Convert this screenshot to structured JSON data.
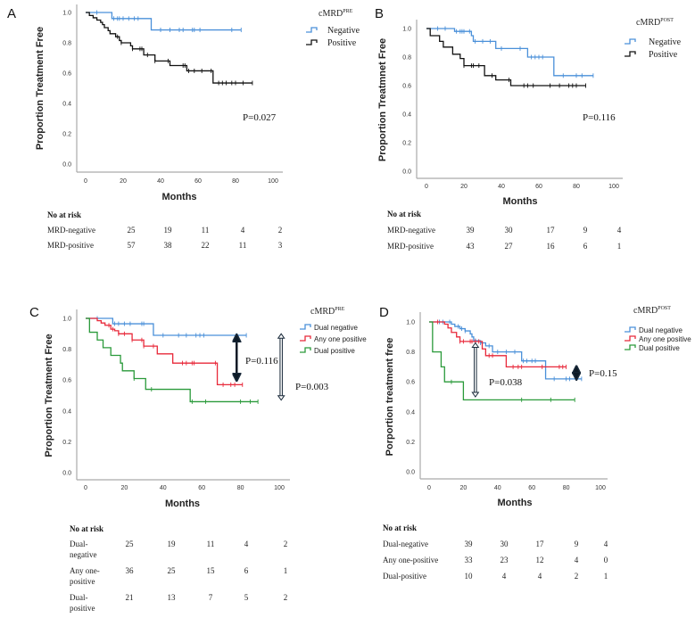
{
  "chart_data": [
    {
      "type": "line",
      "panel": "A",
      "title": "",
      "xlabel": "Months",
      "ylabel": "Proportion Treatment Free",
      "xlim": [
        0,
        100
      ],
      "ylim": [
        0,
        1
      ],
      "xticks": [
        "0",
        "20",
        "40",
        "60",
        "80",
        "100"
      ],
      "yticks": [
        "0.0",
        "0.2",
        "0.4",
        "0.6",
        "0.8",
        "1.0"
      ],
      "legend_title": "cMRD",
      "legend_title_sup": "PRE",
      "legend_style": "serif",
      "pvalues": [
        {
          "text": "P=0.027"
        }
      ],
      "series": [
        {
          "name": "Negative",
          "color": "#4a90d9",
          "steps": [
            [
              0,
              1
            ],
            [
              14,
              0.96
            ],
            [
              35,
              0.885
            ]
          ],
          "end": 83,
          "censors": [
            6,
            15,
            17,
            18,
            20,
            23,
            26,
            28,
            40,
            45,
            50,
            52,
            57,
            58,
            61,
            78,
            83
          ]
        },
        {
          "name": "Positive",
          "color": "#111111",
          "steps": [
            [
              0,
              1
            ],
            [
              2,
              0.98
            ],
            [
              4,
              0.965
            ],
            [
              6,
              0.95
            ],
            [
              8,
              0.935
            ],
            [
              9,
              0.92
            ],
            [
              10,
              0.9
            ],
            [
              12,
              0.88
            ],
            [
              13,
              0.86
            ],
            [
              16,
              0.84
            ],
            [
              18,
              0.815
            ],
            [
              19,
              0.8
            ],
            [
              24,
              0.78
            ],
            [
              25,
              0.76
            ],
            [
              31,
              0.72
            ],
            [
              37,
              0.68
            ],
            [
              45,
              0.65
            ],
            [
              54,
              0.615
            ],
            [
              68,
              0.535
            ]
          ],
          "end": 89,
          "censors": [
            17,
            19,
            25,
            29,
            30,
            33,
            37,
            44,
            52,
            53,
            55,
            58,
            62,
            67,
            71,
            73,
            75,
            78,
            80,
            84,
            89
          ]
        }
      ],
      "risk_table": {
        "header": "No at risk",
        "rows": [
          {
            "label": [
              "MRD-negative"
            ],
            "values": [
              25,
              19,
              11,
              4,
              2
            ]
          },
          {
            "label": [
              "MRD-positive"
            ],
            "values": [
              57,
              38,
              22,
              11,
              3
            ]
          }
        ]
      }
    },
    {
      "type": "line",
      "panel": "B",
      "xlabel": "Months",
      "ylabel": "Proportion Treatmnet Free",
      "xlim": [
        0,
        100
      ],
      "ylim": [
        0,
        1
      ],
      "xticks": [
        "0",
        "20",
        "40",
        "60",
        "80",
        "100"
      ],
      "yticks": [
        "0.0",
        "0.2",
        "0.4",
        "0.6",
        "0.8",
        "1.0"
      ],
      "legend_title": "cMRD",
      "legend_title_sup": "POST",
      "legend_style": "serif",
      "pvalues": [
        {
          "text": "P=0.116"
        }
      ],
      "series": [
        {
          "name": "Negative",
          "color": "#4a90d9",
          "steps": [
            [
              0,
              1
            ],
            [
              15,
              0.98
            ],
            [
              24,
              0.95
            ],
            [
              25,
              0.91
            ],
            [
              37,
              0.86
            ],
            [
              54,
              0.8
            ],
            [
              68,
              0.67
            ]
          ],
          "end": 89,
          "censors": [
            6,
            10,
            16,
            18,
            19,
            20,
            23,
            26,
            30,
            34,
            40,
            50,
            56,
            58,
            60,
            62,
            73,
            80,
            83,
            89
          ]
        },
        {
          "name": "Positive",
          "color": "#111111",
          "steps": [
            [
              0,
              1
            ],
            [
              2,
              0.95
            ],
            [
              7,
              0.91
            ],
            [
              9,
              0.87
            ],
            [
              14,
              0.82
            ],
            [
              18,
              0.79
            ],
            [
              20,
              0.74
            ],
            [
              31,
              0.67
            ],
            [
              37,
              0.64
            ],
            [
              45,
              0.6
            ]
          ],
          "end": 85,
          "censors": [
            20,
            24,
            25,
            28,
            35,
            44,
            52,
            54,
            57,
            66,
            71,
            76,
            78,
            80,
            85
          ]
        }
      ],
      "risk_table": {
        "header": "No at risk",
        "rows": [
          {
            "label": [
              "MRD-negative"
            ],
            "values": [
              39,
              30,
              17,
              9,
              4
            ]
          },
          {
            "label": [
              "MRD-positive"
            ],
            "values": [
              43,
              27,
              16,
              6,
              1
            ]
          }
        ]
      }
    },
    {
      "type": "line",
      "panel": "C",
      "xlabel": "Months",
      "ylabel": "Proportion Treatment Free",
      "xlim": [
        0,
        100
      ],
      "ylim": [
        0,
        1
      ],
      "xticks": [
        "0",
        "20",
        "40",
        "60",
        "80",
        "100"
      ],
      "yticks": [
        "0.0",
        "0.2",
        "0.4",
        "0.6",
        "0.8",
        "1.0"
      ],
      "legend_title": "cMRD",
      "legend_title_sup": "PRE",
      "legend_style": "sans",
      "pvalues": [
        {
          "text": "P=0.116",
          "arrow": {
            "t": 78,
            "from": 0.89,
            "to": 0.6,
            "style": "filled"
          }
        },
        {
          "text": "P=0.003",
          "arrow": {
            "t": 101,
            "from": 0.9,
            "to": 0.47,
            "style": "hollow"
          }
        }
      ],
      "series": [
        {
          "name": "Dual negative",
          "color": "#4a90d9",
          "steps": [
            [
              0,
              1
            ],
            [
              14,
              0.965
            ],
            [
              35,
              0.89
            ]
          ],
          "end": 83,
          "censors": [
            6,
            15,
            17,
            20,
            23,
            29,
            30,
            40,
            48,
            52,
            57,
            59,
            61,
            78,
            83
          ]
        },
        {
          "name": "Any one positive",
          "color": "#e8293a",
          "steps": [
            [
              0,
              1
            ],
            [
              6,
              0.985
            ],
            [
              8,
              0.97
            ],
            [
              10,
              0.955
            ],
            [
              13,
              0.93
            ],
            [
              15,
              0.92
            ],
            [
              17,
              0.9
            ],
            [
              24,
              0.86
            ],
            [
              30,
              0.82
            ],
            [
              37,
              0.77
            ],
            [
              45,
              0.71
            ],
            [
              68,
              0.57
            ]
          ],
          "end": 81,
          "censors": [
            12,
            14,
            17,
            20,
            24,
            29,
            30,
            35,
            50,
            52,
            55,
            56,
            67,
            71,
            75,
            77,
            81
          ]
        },
        {
          "name": "Dual positive",
          "color": "#2a9a3a",
          "steps": [
            [
              0,
              1
            ],
            [
              2,
              0.91
            ],
            [
              6,
              0.86
            ],
            [
              9,
              0.81
            ],
            [
              13,
              0.76
            ],
            [
              18,
              0.71
            ],
            [
              19,
              0.66
            ],
            [
              25,
              0.61
            ],
            [
              31,
              0.54
            ],
            [
              54,
              0.46
            ]
          ],
          "end": 89,
          "censors": [
            25,
            34,
            55,
            62,
            80,
            85,
            89
          ]
        }
      ],
      "risk_table": {
        "header": "No at risk",
        "rows": [
          {
            "label": [
              "Dual-",
              "negative"
            ],
            "values": [
              25,
              19,
              11,
              4,
              2
            ]
          },
          {
            "label": [
              "Any one-",
              "positive"
            ],
            "values": [
              36,
              25,
              15,
              6,
              1
            ]
          },
          {
            "label": [
              "Dual-",
              "positive"
            ],
            "values": [
              21,
              13,
              7,
              5,
              2
            ]
          }
        ]
      }
    },
    {
      "type": "line",
      "panel": "D",
      "xlabel": "Months",
      "ylabel": "Porportion treatment free",
      "xlim": [
        0,
        100
      ],
      "ylim": [
        0,
        1
      ],
      "xticks": [
        "0",
        "20",
        "40",
        "60",
        "80",
        "100"
      ],
      "yticks": [
        "0.0",
        "0.2",
        "0.4",
        "0.6",
        "0.8",
        "1.0"
      ],
      "legend_title": "cMRD",
      "legend_title_sup": "POST",
      "legend_style": "sans",
      "pvalues": [
        {
          "text": "P=0.038",
          "arrow": {
            "t": 27,
            "from": 0.86,
            "to": 0.5,
            "style": "hollow"
          }
        },
        {
          "text": "P=0.15",
          "arrow": {
            "t": 86,
            "from": 0.7,
            "to": 0.62,
            "style": "filled"
          }
        }
      ],
      "series": [
        {
          "name": "Dual negative",
          "color": "#4a90d9",
          "steps": [
            [
              0,
              1
            ],
            [
              13,
              0.985
            ],
            [
              15,
              0.97
            ],
            [
              18,
              0.955
            ],
            [
              21,
              0.94
            ],
            [
              24,
              0.92
            ],
            [
              25,
              0.9
            ],
            [
              26,
              0.875
            ],
            [
              30,
              0.86
            ],
            [
              33,
              0.84
            ],
            [
              37,
              0.8
            ],
            [
              54,
              0.74
            ],
            [
              68,
              0.62
            ]
          ],
          "end": 89,
          "censors": [
            6,
            8,
            12,
            17,
            19,
            21,
            27,
            30,
            35,
            40,
            45,
            50,
            55,
            57,
            60,
            62,
            73,
            80,
            82,
            89
          ]
        },
        {
          "name": "Any one positive",
          "color": "#e8293a",
          "steps": [
            [
              0,
              1
            ],
            [
              9,
              0.985
            ],
            [
              11,
              0.96
            ],
            [
              13,
              0.93
            ],
            [
              16,
              0.9
            ],
            [
              18,
              0.87
            ],
            [
              31,
              0.82
            ],
            [
              33,
              0.775
            ],
            [
              45,
              0.7
            ]
          ],
          "end": 80,
          "censors": [
            5,
            18,
            20,
            24,
            25,
            27,
            29,
            35,
            37,
            49,
            52,
            54,
            66,
            76,
            78,
            80
          ]
        },
        {
          "name": "Dual positive",
          "color": "#2a9a3a",
          "steps": [
            [
              0,
              1
            ],
            [
              2,
              0.8
            ],
            [
              7,
              0.7
            ],
            [
              9,
              0.6
            ],
            [
              20,
              0.48
            ]
          ],
          "end": 85,
          "censors": [
            13,
            54,
            71,
            85
          ]
        }
      ],
      "risk_table": {
        "header": "No at risk",
        "rows": [
          {
            "label": [
              "Dual-negative"
            ],
            "values": [
              39,
              30,
              17,
              9,
              4
            ]
          },
          {
            "label": [
              "Any one-positive"
            ],
            "values": [
              33,
              23,
              12,
              4,
              0
            ]
          },
          {
            "label": [
              "Dual-positive"
            ],
            "values": [
              10,
              4,
              4,
              2,
              1
            ]
          }
        ]
      }
    }
  ]
}
